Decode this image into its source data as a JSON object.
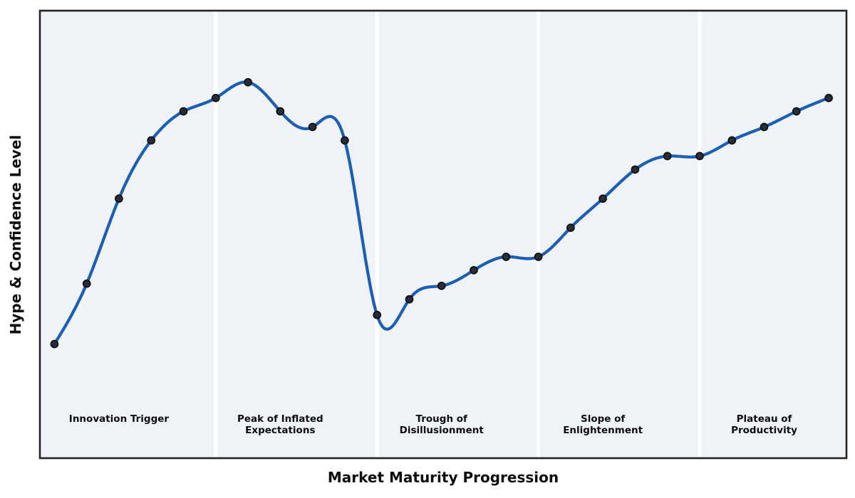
{
  "chart_data": {
    "type": "line",
    "title": "",
    "xlabel": "Market Maturity Progression",
    "ylabel": "Hype & Confidence Level",
    "x": [
      0,
      1,
      2,
      3,
      4,
      5,
      6,
      7,
      8,
      9,
      10,
      11,
      12,
      13,
      14,
      15,
      16,
      17,
      18,
      19,
      20,
      21,
      22,
      23,
      24
    ],
    "y": [
      25.5,
      39,
      58,
      71,
      77.5,
      80.5,
      84,
      77.5,
      74,
      71,
      32,
      35.5,
      38.5,
      42,
      45,
      45,
      51.5,
      58,
      64.5,
      67.5,
      67.5,
      71,
      74,
      77.5,
      80.5
    ],
    "xlim": [
      -0.45,
      24.55
    ],
    "ylim": [
      0,
      100
    ],
    "axis_ticks_visible": false,
    "grid": false,
    "legend_position": "none",
    "interpolation": "natural-cubic-spline",
    "marker": "circle",
    "phase_boundaries_x": [
      5,
      10,
      15,
      20
    ],
    "phases": [
      {
        "label_x": 2,
        "lines": [
          "Innovation Trigger"
        ]
      },
      {
        "label_x": 7,
        "lines": [
          "Peak of Inflated",
          "Expectations"
        ]
      },
      {
        "label_x": 12,
        "lines": [
          "Trough of",
          "Disillusionment"
        ]
      },
      {
        "label_x": 17,
        "lines": [
          "Slope of",
          "Enlightenment"
        ]
      },
      {
        "label_x": 22,
        "lines": [
          "Plateau of",
          "Productivity"
        ]
      }
    ],
    "colors": {
      "line": "#1b5eb2",
      "marker_fill": "#262e3a",
      "marker_edge": "#0b0f14",
      "plot_bg": "#eff3f8",
      "separator": "#ffffff",
      "frame": "#242424",
      "text": "#0d0d0d",
      "figure_bg": "#ffffff"
    }
  }
}
